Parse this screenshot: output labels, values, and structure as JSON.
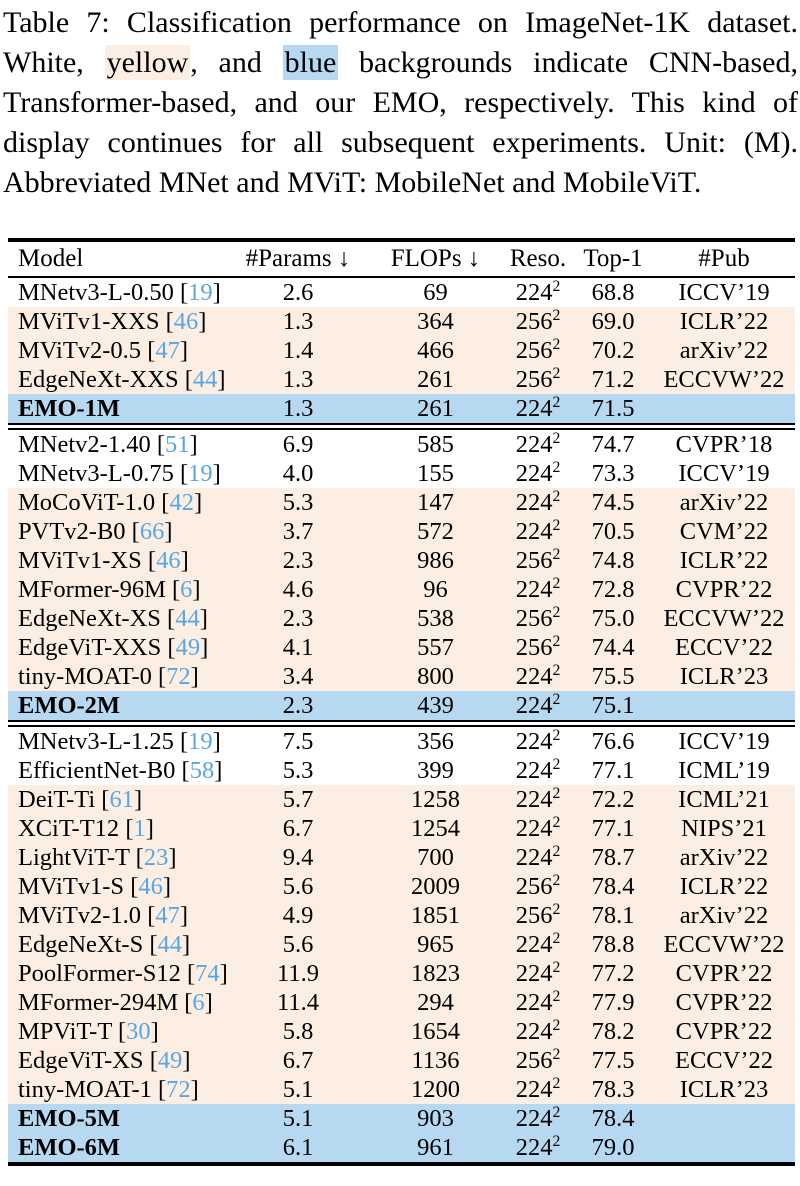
{
  "colors": {
    "transformer_row_bg": "#fceee2",
    "emo_row_bg": "#b6d8f0",
    "citation_link": "#57a6e6",
    "rule": "#000000"
  },
  "caption": {
    "lines": [
      [
        {
          "t": "Table 7: Classification performance on ImageNet-1K dataset."
        }
      ],
      [
        {
          "t": "White, "
        },
        {
          "t": "yellow",
          "hl": "transformer"
        },
        {
          "t": ", and "
        },
        {
          "t": "blue",
          "hl": "emo"
        },
        {
          "t": " backgrounds indicate CNN-based,"
        }
      ],
      [
        {
          "t": "Transformer-based, and our EMO, respectively. This kind of"
        }
      ],
      [
        {
          "t": "display continues for all subsequent experiments. Unit: (M)."
        }
      ],
      [
        {
          "t": "Abbreviated MNet and MViT: MobileNet and MobileViT."
        }
      ]
    ]
  },
  "table": {
    "columns": [
      {
        "label": "Model"
      },
      {
        "label": "#Params ↓"
      },
      {
        "label": "FLOPs ↓"
      },
      {
        "label": "Reso."
      },
      {
        "label": "Top-1"
      },
      {
        "label": "#Pub"
      }
    ],
    "groups": [
      {
        "rows": [
          {
            "model": "MNetv3-L-0.50",
            "cite": "19",
            "type": "cnn",
            "params": "2.6",
            "flops": "69",
            "reso": "224^2",
            "top1": "68.8",
            "pub": "ICCV’19"
          },
          {
            "model": "MViTv1-XXS",
            "cite": "46",
            "type": "transformer",
            "params": "1.3",
            "flops": "364",
            "reso": "256^2",
            "top1": "69.0",
            "pub": "ICLR’22"
          },
          {
            "model": "MViTv2-0.5",
            "cite": "47",
            "type": "transformer",
            "params": "1.4",
            "flops": "466",
            "reso": "256^2",
            "top1": "70.2",
            "pub": "arXiv’22"
          },
          {
            "model": "EdgeNeXt-XXS",
            "cite": "44",
            "type": "transformer",
            "params": "1.3",
            "flops": "261",
            "reso": "256^2",
            "top1": "71.2",
            "pub": "ECCVW’22"
          },
          {
            "model": "EMO-1M",
            "cite": null,
            "type": "emo",
            "params": "1.3",
            "flops": "261",
            "reso": "224^2",
            "top1": "71.5",
            "pub": ""
          }
        ]
      },
      {
        "rows": [
          {
            "model": "MNetv2-1.40",
            "cite": "51",
            "type": "cnn",
            "params": "6.9",
            "flops": "585",
            "reso": "224^2",
            "top1": "74.7",
            "pub": "CVPR’18"
          },
          {
            "model": "MNetv3-L-0.75",
            "cite": "19",
            "type": "cnn",
            "params": "4.0",
            "flops": "155",
            "reso": "224^2",
            "top1": "73.3",
            "pub": "ICCV’19"
          },
          {
            "model": "MoCoViT-1.0",
            "cite": "42",
            "type": "transformer",
            "params": "5.3",
            "flops": "147",
            "reso": "224^2",
            "top1": "74.5",
            "pub": "arXiv’22"
          },
          {
            "model": "PVTv2-B0",
            "cite": "66",
            "type": "transformer",
            "params": "3.7",
            "flops": "572",
            "reso": "224^2",
            "top1": "70.5",
            "pub": "CVM’22"
          },
          {
            "model": "MViTv1-XS",
            "cite": "46",
            "type": "transformer",
            "params": "2.3",
            "flops": "986",
            "reso": "256^2",
            "top1": "74.8",
            "pub": "ICLR’22"
          },
          {
            "model": "MFormer-96M",
            "cite": "6",
            "type": "transformer",
            "params": "4.6",
            "flops": "96",
            "reso": "224^2",
            "top1": "72.8",
            "pub": "CVPR’22"
          },
          {
            "model": "EdgeNeXt-XS",
            "cite": "44",
            "type": "transformer",
            "params": "2.3",
            "flops": "538",
            "reso": "256^2",
            "top1": "75.0",
            "pub": "ECCVW’22"
          },
          {
            "model": "EdgeViT-XXS",
            "cite": "49",
            "type": "transformer",
            "params": "4.1",
            "flops": "557",
            "reso": "256^2",
            "top1": "74.4",
            "pub": "ECCV’22"
          },
          {
            "model": "tiny-MOAT-0",
            "cite": "72",
            "type": "transformer",
            "params": "3.4",
            "flops": "800",
            "reso": "224^2",
            "top1": "75.5",
            "pub": "ICLR’23"
          },
          {
            "model": "EMO-2M",
            "cite": null,
            "type": "emo",
            "params": "2.3",
            "flops": "439",
            "reso": "224^2",
            "top1": "75.1",
            "pub": ""
          }
        ]
      },
      {
        "rows": [
          {
            "model": "MNetv3-L-1.25",
            "cite": "19",
            "type": "cnn",
            "params": "7.5",
            "flops": "356",
            "reso": "224^2",
            "top1": "76.6",
            "pub": "ICCV’19"
          },
          {
            "model": "EfficientNet-B0",
            "cite": "58",
            "type": "cnn",
            "params": "5.3",
            "flops": "399",
            "reso": "224^2",
            "top1": "77.1",
            "pub": "ICML’19"
          },
          {
            "model": "DeiT-Ti",
            "cite": "61",
            "type": "transformer",
            "params": "5.7",
            "flops": "1258",
            "reso": "224^2",
            "top1": "72.2",
            "pub": "ICML’21"
          },
          {
            "model": "XCiT-T12",
            "cite": "1",
            "type": "transformer",
            "params": "6.7",
            "flops": "1254",
            "reso": "224^2",
            "top1": "77.1",
            "pub": "NIPS’21"
          },
          {
            "model": "LightViT-T",
            "cite": "23",
            "type": "transformer",
            "params": "9.4",
            "flops": "700",
            "reso": "224^2",
            "top1": "78.7",
            "pub": "arXiv’22"
          },
          {
            "model": "MViTv1-S",
            "cite": "46",
            "type": "transformer",
            "params": "5.6",
            "flops": "2009",
            "reso": "256^2",
            "top1": "78.4",
            "pub": "ICLR’22"
          },
          {
            "model": "MViTv2-1.0",
            "cite": "47",
            "type": "transformer",
            "params": "4.9",
            "flops": "1851",
            "reso": "256^2",
            "top1": "78.1",
            "pub": "arXiv’22"
          },
          {
            "model": "EdgeNeXt-S",
            "cite": "44",
            "type": "transformer",
            "params": "5.6",
            "flops": "965",
            "reso": "224^2",
            "top1": "78.8",
            "pub": "ECCVW’22"
          },
          {
            "model": "PoolFormer-S12",
            "cite": "74",
            "type": "transformer",
            "params": "11.9",
            "flops": "1823",
            "reso": "224^2",
            "top1": "77.2",
            "pub": "CVPR’22"
          },
          {
            "model": "MFormer-294M",
            "cite": "6",
            "type": "transformer",
            "params": "11.4",
            "flops": "294",
            "reso": "224^2",
            "top1": "77.9",
            "pub": "CVPR’22"
          },
          {
            "model": "MPViT-T",
            "cite": "30",
            "type": "transformer",
            "params": "5.8",
            "flops": "1654",
            "reso": "224^2",
            "top1": "78.2",
            "pub": "CVPR’22"
          },
          {
            "model": "EdgeViT-XS",
            "cite": "49",
            "type": "transformer",
            "params": "6.7",
            "flops": "1136",
            "reso": "256^2",
            "top1": "77.5",
            "pub": "ECCV’22"
          },
          {
            "model": "tiny-MOAT-1",
            "cite": "72",
            "type": "transformer",
            "params": "5.1",
            "flops": "1200",
            "reso": "224^2",
            "top1": "78.3",
            "pub": "ICLR’23"
          },
          {
            "model": "EMO-5M",
            "cite": null,
            "type": "emo",
            "params": "5.1",
            "flops": "903",
            "reso": "224^2",
            "top1": "78.4",
            "pub": ""
          },
          {
            "model": "EMO-6M",
            "cite": null,
            "type": "emo",
            "params": "6.1",
            "flops": "961",
            "reso": "224^2",
            "top1": "79.0",
            "pub": ""
          }
        ]
      }
    ]
  }
}
